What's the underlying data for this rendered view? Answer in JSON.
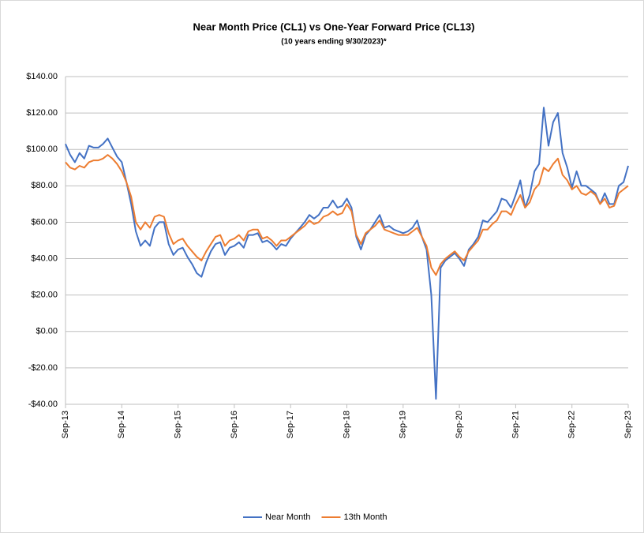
{
  "chart_data": {
    "type": "line",
    "title": "Near Month Price (CL1) vs One-Year Forward Price (CL13)",
    "subtitle": "(10 years ending  9/30/2023)*",
    "categories": [
      "Sep-13",
      null,
      null,
      null,
      null,
      null,
      null,
      null,
      null,
      null,
      null,
      null,
      "Sep-14",
      null,
      null,
      null,
      null,
      null,
      null,
      null,
      null,
      null,
      null,
      null,
      "Sep-15",
      null,
      null,
      null,
      null,
      null,
      null,
      null,
      null,
      null,
      null,
      null,
      "Sep-16",
      null,
      null,
      null,
      null,
      null,
      null,
      null,
      null,
      null,
      null,
      null,
      "Sep-17",
      null,
      null,
      null,
      null,
      null,
      null,
      null,
      null,
      null,
      null,
      null,
      "Sep-18",
      null,
      null,
      null,
      null,
      null,
      null,
      null,
      null,
      null,
      null,
      null,
      "Sep-19",
      null,
      null,
      null,
      null,
      null,
      null,
      null,
      null,
      null,
      null,
      null,
      "Sep-20",
      null,
      null,
      null,
      null,
      null,
      null,
      null,
      null,
      null,
      null,
      null,
      "Sep-21",
      null,
      null,
      null,
      null,
      null,
      null,
      null,
      null,
      null,
      null,
      null,
      "Sep-22",
      null,
      null,
      null,
      null,
      null,
      null,
      null,
      null,
      null,
      null,
      null,
      "Sep-23"
    ],
    "series": [
      {
        "name": "Near Month",
        "color": "#4472c4",
        "values": [
          103,
          97,
          93,
          98,
          95,
          102,
          101,
          101,
          103,
          106,
          101,
          96,
          93,
          82,
          70,
          55,
          47,
          50,
          47,
          57,
          60,
          60,
          48,
          42,
          45,
          46,
          41,
          37,
          32,
          30,
          38,
          44,
          48,
          49,
          42,
          46,
          47,
          49,
          46,
          53,
          53,
          54,
          49,
          50,
          48,
          45,
          48,
          47,
          51,
          54,
          57,
          60,
          64,
          62,
          64,
          68,
          68,
          72,
          68,
          69,
          73,
          68,
          52,
          45,
          53,
          56,
          60,
          64,
          57,
          58,
          56,
          55,
          54,
          55,
          57,
          61,
          52,
          45,
          20,
          -37,
          35,
          39,
          41,
          43,
          40,
          36,
          45,
          48,
          52,
          61,
          60,
          63,
          66,
          73,
          72,
          68,
          75,
          83,
          68,
          75,
          88,
          92,
          123,
          102,
          115,
          120,
          98,
          90,
          79,
          88,
          80,
          80,
          78,
          76,
          70,
          76,
          70,
          70,
          80,
          82,
          91
        ]
      },
      {
        "name": "13th Month",
        "color": "#ed7d31",
        "values": [
          93,
          90,
          89,
          91,
          90,
          93,
          94,
          94,
          95,
          97,
          95,
          92,
          88,
          82,
          74,
          60,
          56,
          60,
          57,
          63,
          64,
          63,
          54,
          48,
          50,
          51,
          47,
          44,
          41,
          39,
          44,
          48,
          52,
          53,
          47,
          50,
          51,
          53,
          50,
          55,
          56,
          56,
          51,
          52,
          50,
          47,
          50,
          50,
          52,
          54,
          56,
          58,
          61,
          59,
          60,
          63,
          64,
          66,
          64,
          65,
          70,
          66,
          53,
          48,
          54,
          56,
          58,
          61,
          56,
          55,
          54,
          53,
          53,
          53,
          55,
          57,
          52,
          47,
          35,
          31,
          37,
          40,
          42,
          44,
          41,
          39,
          44,
          47,
          50,
          56,
          56,
          59,
          61,
          66,
          66,
          64,
          70,
          75,
          68,
          71,
          78,
          81,
          90,
          88,
          92,
          95,
          86,
          83,
          78,
          80,
          76,
          75,
          77,
          75,
          70,
          73,
          68,
          69,
          76,
          78,
          80
        ]
      }
    ],
    "ylim": [
      -40,
      140
    ],
    "yticks": [
      {
        "value": -40,
        "label": "-$40.00"
      },
      {
        "value": -20,
        "label": "-$20.00"
      },
      {
        "value": 0,
        "label": "$0.00"
      },
      {
        "value": 20,
        "label": "$20.00"
      },
      {
        "value": 40,
        "label": "$40.00"
      },
      {
        "value": 60,
        "label": "$60.00"
      },
      {
        "value": 80,
        "label": "$80.00"
      },
      {
        "value": 100,
        "label": "$100.00"
      },
      {
        "value": 120,
        "label": "$120.00"
      },
      {
        "value": 140,
        "label": "$140.00"
      }
    ],
    "grid": true,
    "legend": "bottom"
  }
}
